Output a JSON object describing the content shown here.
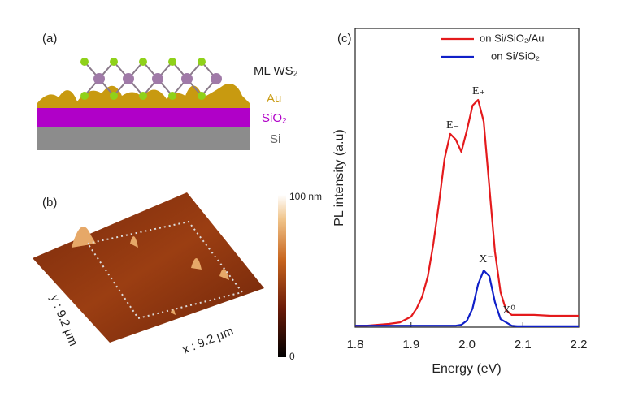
{
  "panels": {
    "a": {
      "label": "(a)",
      "layers": [
        "ML WS₂",
        "Au",
        "SiO₂",
        "Si"
      ]
    },
    "b": {
      "label": "(b)",
      "colorbar_top": "100 nm",
      "colorbar_bottom": "0",
      "y_size": "y : 9.2 μm",
      "x_size": "x : 9.2 μm"
    }
  },
  "chart_data": {
    "type": "line",
    "label": "(c)",
    "x_label": "Energy (eV)",
    "y_label": "PL intensity (a.u)",
    "x": [
      1.8,
      1.82,
      1.84,
      1.86,
      1.88,
      1.9,
      1.91,
      1.92,
      1.93,
      1.94,
      1.95,
      1.96,
      1.97,
      1.98,
      1.99,
      2.0,
      2.01,
      2.02,
      2.03,
      2.04,
      2.05,
      2.06,
      2.07,
      2.08,
      2.09,
      2.1,
      2.12,
      2.15,
      2.2
    ],
    "series": [
      {
        "name": "on Si/SiO₂/Au",
        "color": "#e41a1c",
        "values": [
          0.005,
          0.005,
          0.008,
          0.011,
          0.016,
          0.035,
          0.063,
          0.103,
          0.171,
          0.28,
          0.416,
          0.565,
          0.647,
          0.628,
          0.587,
          0.66,
          0.742,
          0.761,
          0.688,
          0.47,
          0.253,
          0.117,
          0.057,
          0.041,
          0.041,
          0.041,
          0.041,
          0.038,
          0.038
        ]
      },
      {
        "name": "on Si/SiO₂",
        "color": "#1020c8",
        "values": [
          0.005,
          0.005,
          0.005,
          0.005,
          0.005,
          0.005,
          0.005,
          0.005,
          0.005,
          0.005,
          0.005,
          0.005,
          0.005,
          0.005,
          0.008,
          0.022,
          0.063,
          0.144,
          0.19,
          0.171,
          0.084,
          0.027,
          0.016,
          0.005,
          0.003,
          0.003,
          0.003,
          0.003,
          0.003
        ]
      }
    ],
    "annotations": [
      "E₋",
      "E₊",
      "X⁻",
      "X⁰"
    ],
    "xlim": [
      1.8,
      2.2
    ],
    "xticks": [
      1.8,
      1.9,
      {
        "value": 2.0,
        "label": "2.0"
      },
      2.1,
      2.2
    ],
    "ylim": [
      0,
      1
    ],
    "legend": "upper right"
  }
}
